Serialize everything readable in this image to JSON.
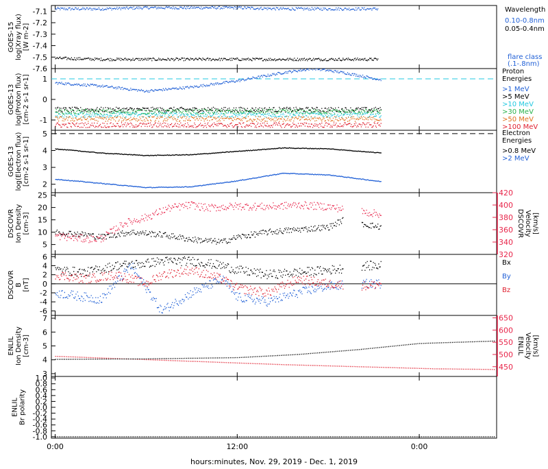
{
  "colors": {
    "black": "#000000",
    "blue": "#1f5fd6",
    "cyan": "#22c8e0",
    "green": "#27b24a",
    "yellow": "#c9c400",
    "orange": "#e0701c",
    "red": "#e02030",
    "magenta": "#e8254a"
  },
  "chart_data": {
    "type": "scatter",
    "xlabel": "hours:minutes, Nov. 29, 2019 - Dec.  1, 2019",
    "x_ticks": [
      "0:00",
      "12:00",
      "0:00"
    ],
    "x_tick_hours": [
      0,
      12,
      24
    ],
    "xlim_hours": [
      -0.25,
      29.1
    ],
    "panels": [
      {
        "id": "goes15",
        "ylabel": [
          "GOES-15",
          "log(Xray flux)",
          "[W m-2]"
        ],
        "ylim": [
          -7.6,
          -7.05
        ],
        "yticks": [
          "-7.1",
          "-7.2",
          "-7.3",
          "-7.4",
          "-7.5",
          "-7.6"
        ],
        "ytick_values": [
          -7.1,
          -7.2,
          -7.3,
          -7.4,
          -7.5,
          -7.6
        ],
        "legend_title": [
          "Wavelength"
        ],
        "legend": [
          {
            "label": "0.10-0.8nm",
            "color": "#1f5fd6"
          },
          {
            "label": "0.05-0.4nm",
            "color": "#000000"
          }
        ],
        "note": [
          "flare class",
          "(.1-.8nm)"
        ],
        "series": [
          {
            "name": "0.10-0.8nm",
            "color": "#1f5fd6",
            "x": [
              0,
              3,
              6,
              9,
              12,
              15,
              18,
              21.3
            ],
            "y": [
              -7.08,
              -7.08,
              -7.07,
              -7.07,
              -7.07,
              -7.08,
              -7.08,
              -7.08
            ]
          },
          {
            "name": "0.05-0.4nm",
            "color": "#000000",
            "x": [
              0,
              3,
              6,
              9,
              12,
              15,
              18,
              21.3
            ],
            "y": [
              -7.51,
              -7.52,
              -7.52,
              -7.52,
              -7.52,
              -7.52,
              -7.52,
              -7.52
            ]
          }
        ]
      },
      {
        "id": "proton",
        "ylabel": [
          "GOES-13",
          "log(Proton flux)",
          "[cm-2 s-1 sr-1]"
        ],
        "ylim": [
          -1.5,
          1.5
        ],
        "yticks": [
          "1",
          "0",
          "-1"
        ],
        "ytick_values": [
          1,
          0,
          -1
        ],
        "legend_title": [
          "Proton",
          "Energies"
        ],
        "legend": [
          {
            "label": ">1 MeV",
            "color": "#1f5fd6"
          },
          {
            "label": ">5 MeV",
            "color": "#000000"
          },
          {
            "label": ">10 MeV",
            "color": "#22c8e0"
          },
          {
            "label": ">30 MeV",
            "color": "#27b24a"
          },
          {
            "label": ">50 MeV",
            "color": "#e0701c"
          },
          {
            "label": ">100 MeV",
            "color": "#e02030"
          }
        ],
        "threshold": {
          "y": 1.0,
          "color": "#22c8e0"
        },
        "series": [
          {
            "name": ">1 MeV",
            "color": "#1f5fd6",
            "x": [
              0,
              3,
              6,
              9,
              12,
              15,
              17,
              19,
              21.5
            ],
            "y": [
              0.8,
              0.65,
              0.4,
              0.6,
              0.9,
              1.3,
              1.5,
              1.3,
              0.95
            ]
          },
          {
            "name": ">5 MeV",
            "color": "#000000",
            "x": [
              0,
              6,
              12,
              18,
              21.5
            ],
            "y": [
              -0.5,
              -0.5,
              -0.5,
              -0.5,
              -0.5
            ]
          },
          {
            "name": ">10 MeV",
            "color": "#22c8e0",
            "x": [
              0,
              6,
              12,
              18,
              21.5
            ],
            "y": [
              -0.75,
              -0.75,
              -0.75,
              -0.75,
              -0.75
            ]
          },
          {
            "name": ">30 MeV",
            "color": "#27b24a",
            "x": [
              0,
              6,
              12,
              18,
              21.5
            ],
            "y": [
              -0.6,
              -0.6,
              -0.6,
              -0.6,
              -0.6
            ]
          },
          {
            "name": ">50 MeV",
            "color": "#e0701c",
            "x": [
              0,
              6,
              12,
              18,
              21.5
            ],
            "y": [
              -0.95,
              -0.95,
              -0.95,
              -0.95,
              -0.95
            ]
          },
          {
            "name": ">100 MeV",
            "color": "#e02030",
            "x": [
              0,
              6,
              12,
              18,
              21.5
            ],
            "y": [
              -1.25,
              -1.25,
              -1.25,
              -1.25,
              -1.25
            ]
          }
        ]
      },
      {
        "id": "electron",
        "ylabel": [
          "GOES-13",
          "log(Electron flux)",
          "[cm-2 s-1 sr-1]"
        ],
        "ylim": [
          1.5,
          5.2
        ],
        "yticks": [
          "5",
          "4",
          "3",
          "2"
        ],
        "ytick_values": [
          5,
          4,
          3,
          2
        ],
        "legend_title": [
          "Electron",
          "Energies"
        ],
        "legend": [
          {
            "label": ">0.8 MeV",
            "color": "#000000"
          },
          {
            "label": ">2 MeV",
            "color": "#1f5fd6"
          }
        ],
        "threshold": {
          "y": 5.0,
          "color": "#000000"
        },
        "series": [
          {
            "name": ">0.8 MeV",
            "color": "#000000",
            "x": [
              0,
              3,
              6,
              9,
              12,
              15,
              18,
              21.5
            ],
            "y": [
              4.1,
              3.85,
              3.7,
              3.75,
              3.95,
              4.15,
              4.1,
              3.85
            ]
          },
          {
            "name": ">2 MeV",
            "color": "#1f5fd6",
            "x": [
              0,
              3,
              6,
              9,
              12,
              15,
              18,
              21.5
            ],
            "y": [
              2.3,
              2.05,
              1.8,
              1.85,
              2.2,
              2.65,
              2.55,
              2.15
            ]
          }
        ]
      },
      {
        "id": "dscovr_density",
        "ylabel": [
          "DSCOVR",
          "Ion Density",
          "[cm-3]"
        ],
        "ylim": [
          1,
          26
        ],
        "yticks": [
          "25",
          "20",
          "15",
          "10",
          "5"
        ],
        "ytick_values": [
          25,
          20,
          15,
          10,
          5
        ],
        "right_ylabel": [
          "DSCOVR",
          "Velocity",
          "[km/s]"
        ],
        "right_ylim": [
          320,
          420
        ],
        "right_yticks": [
          "420",
          "400",
          "380",
          "360",
          "340",
          "320"
        ],
        "right_ytick_values": [
          420,
          400,
          380,
          360,
          340,
          320
        ],
        "series": [
          {
            "name": "density",
            "color": "#000000",
            "x": [
              0,
              2,
              3,
              5,
              7,
              9,
              11,
              12,
              14,
              16,
              18,
              19,
              20.5,
              21.5
            ],
            "y": [
              10,
              9,
              8,
              10,
              9,
              7,
              6,
              8,
              10,
              11,
              12,
              15,
              13,
              12
            ]
          },
          {
            "name": "velocity",
            "color": "#e8254a",
            "x": [
              0,
              2,
              3,
              4.5,
              6,
              7.5,
              9,
              10,
              12,
              14,
              16,
              18,
              20.5,
              21.5
            ],
            "y": [
              350,
              345,
              345,
              370,
              380,
              395,
              400,
              395,
              398,
              397,
              400,
              397,
              388,
              385
            ]
          }
        ]
      },
      {
        "id": "dscovr_b",
        "ylabel": [
          "DSCOVR",
          "B",
          "[nT]"
        ],
        "ylim": [
          -7,
          6.5
        ],
        "yticks": [
          "6",
          "4",
          "2",
          "0",
          "-2",
          "-4",
          "-6"
        ],
        "ytick_values": [
          6,
          4,
          2,
          0,
          -2,
          -4,
          -6
        ],
        "zero_line": true,
        "legend": [
          {
            "label": "Bx",
            "color": "#000000"
          },
          {
            "label": "By",
            "color": "#1f5fd6"
          },
          {
            "label": "Bz",
            "color": "#e02030"
          }
        ],
        "series": [
          {
            "name": "Bx",
            "color": "#000000",
            "x": [
              0,
              2,
              4,
              6,
              7,
              9,
              11,
              12,
              14,
              16,
              18,
              20.5,
              21.5
            ],
            "y": [
              3,
              2.5,
              4,
              4.5,
              5,
              5,
              4,
              3,
              2,
              2.5,
              3,
              4,
              4
            ]
          },
          {
            "name": "By",
            "color": "#1f5fd6",
            "x": [
              0,
              2,
              3,
              5,
              7,
              9,
              11,
              12,
              14,
              16,
              18,
              20.5,
              21.5
            ],
            "y": [
              -2,
              -3,
              -3.5,
              4,
              -6,
              -2,
              1,
              -3,
              -4,
              -2,
              -0.5,
              0,
              0
            ]
          },
          {
            "name": "Bz",
            "color": "#e02030",
            "x": [
              0,
              2,
              4,
              6,
              7,
              9,
              11,
              12,
              14,
              16,
              18,
              20.5,
              21.5
            ],
            "y": [
              2,
              1,
              2,
              0,
              2,
              3,
              1,
              -1,
              -2,
              1,
              0,
              -0.5,
              0
            ]
          }
        ]
      },
      {
        "id": "enlil",
        "ylabel": [
          "ENLIL",
          "Ion Density",
          "[cm-3]"
        ],
        "ylim": [
          2.8,
          7.2
        ],
        "yticks": [
          "7",
          "6",
          "5",
          "4",
          "3"
        ],
        "ytick_values": [
          7,
          6,
          5,
          4,
          3
        ],
        "right_ylabel": [
          "ENLIL",
          "Velocity",
          "[km/s]"
        ],
        "right_ylim": [
          410,
          660
        ],
        "right_yticks": [
          "650",
          "600",
          "550",
          "500",
          "450"
        ],
        "right_ytick_values": [
          650,
          600,
          550,
          500,
          450
        ],
        "series": [
          {
            "name": "density",
            "color": "#e02030",
            "x": [
              0,
              5,
              10,
              15,
              20,
              25,
              29
            ],
            "y": [
              4.25,
              4.05,
              3.85,
              3.65,
              3.5,
              3.35,
              3.3
            ]
          },
          {
            "name": "velocity",
            "color": "#000000",
            "x": [
              0,
              6,
              12,
              16,
              20,
              24,
              29
            ],
            "y": [
              480,
              482,
              487,
              500,
              520,
              545,
              555
            ]
          }
        ]
      },
      {
        "id": "enlil_polarity",
        "ylabel": [
          "ENLIL",
          "Br polarity"
        ],
        "ylim": [
          -1.05,
          1.05
        ],
        "yticks": [
          "1.0",
          "0.8",
          "0.6",
          "0.4",
          "0.2",
          "0.0",
          "-0.2",
          "-0.4",
          "-0.6",
          "-0.8",
          "-1.0"
        ],
        "ytick_values": [
          1.0,
          0.8,
          0.6,
          0.4,
          0.2,
          0.0,
          -0.2,
          -0.4,
          -0.6,
          -0.8,
          -1.0
        ],
        "series": [
          {
            "name": "polarity",
            "color": "#000000",
            "x": [
              0,
              10,
              20,
              29
            ],
            "y": [
              -1,
              -1,
              -1,
              -1
            ]
          }
        ]
      }
    ]
  }
}
